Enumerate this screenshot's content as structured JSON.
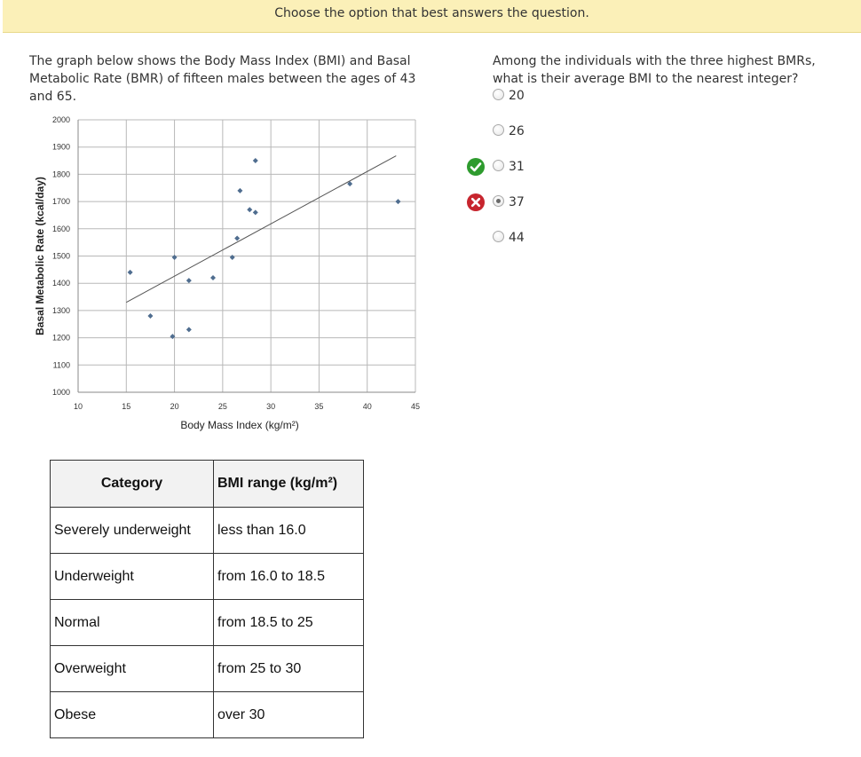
{
  "banner": {
    "instruction": "Choose the option that best answers the question."
  },
  "passage": {
    "text": "The graph below shows the Body Mass Index (BMI) and Basal Metabolic Rate (BMR) of fifteen males between the ages of 43 and 65."
  },
  "question": {
    "text": "Among the individuals with the three highest BMRs, what is their average BMI to the nearest integer?",
    "options": [
      {
        "label": "20",
        "selected": false
      },
      {
        "label": "26",
        "selected": false
      },
      {
        "label": "31",
        "selected": false,
        "mark": "correct"
      },
      {
        "label": "37",
        "selected": true,
        "mark": "incorrect"
      },
      {
        "label": "44",
        "selected": false
      }
    ],
    "correct_color": "#2e9b2e",
    "incorrect_color": "#c7252e"
  },
  "chart_data": {
    "type": "scatter",
    "xlabel": "Body Mass Index (kg/m²)",
    "ylabel": "Basal Metabolic Rate (kcal/day)",
    "xlim": [
      10,
      45
    ],
    "ylim": [
      1000,
      2000
    ],
    "xticks": [
      "10",
      "15",
      "20",
      "25",
      "30",
      "35",
      "40",
      "45"
    ],
    "yticks": [
      "1000",
      "1100",
      "1200",
      "1300",
      "1400",
      "1500",
      "1600",
      "1700",
      "1800",
      "1900",
      "2000"
    ],
    "grid": true,
    "marker_color": "#4f6d8f",
    "points": [
      {
        "x": 15.4,
        "y": 1440
      },
      {
        "x": 17.5,
        "y": 1280
      },
      {
        "x": 19.8,
        "y": 1205
      },
      {
        "x": 20.0,
        "y": 1495
      },
      {
        "x": 21.5,
        "y": 1410
      },
      {
        "x": 21.5,
        "y": 1230
      },
      {
        "x": 24.0,
        "y": 1420
      },
      {
        "x": 26.0,
        "y": 1495
      },
      {
        "x": 26.5,
        "y": 1565
      },
      {
        "x": 26.8,
        "y": 1740
      },
      {
        "x": 27.8,
        "y": 1670
      },
      {
        "x": 28.4,
        "y": 1660
      },
      {
        "x": 28.4,
        "y": 1850
      },
      {
        "x": 38.2,
        "y": 1765
      },
      {
        "x": 43.2,
        "y": 1700
      }
    ],
    "trendline": {
      "x": [
        15.0,
        43.0
      ],
      "y": [
        1330,
        1868
      ]
    }
  },
  "table": {
    "headers": [
      "Category",
      "BMI range (kg/m²)"
    ],
    "rows": [
      [
        "Severely underweight",
        "less than 16.0"
      ],
      [
        "Underweight",
        "from 16.0 to 18.5"
      ],
      [
        "Normal",
        "from 18.5 to 25"
      ],
      [
        "Overweight",
        "from 25 to 30"
      ],
      [
        "Obese",
        "over 30"
      ]
    ]
  }
}
